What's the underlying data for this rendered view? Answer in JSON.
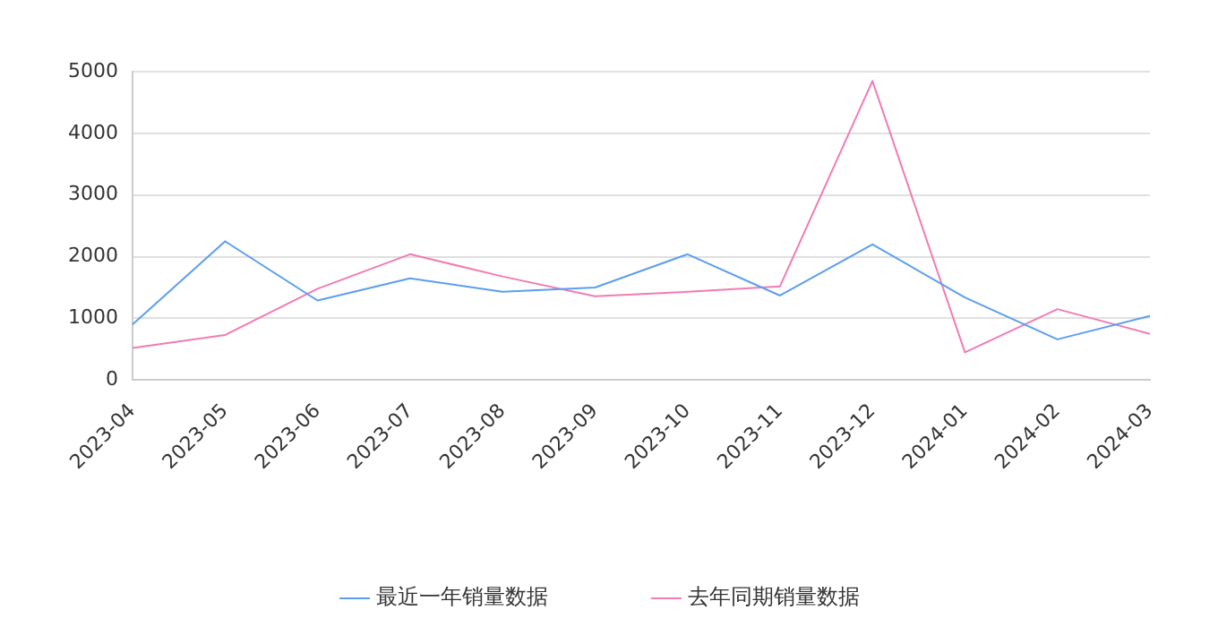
{
  "chart_data": {
    "type": "line",
    "categories": [
      "2023-04",
      "2023-05",
      "2023-06",
      "2023-07",
      "2023-08",
      "2023-09",
      "2023-10",
      "2023-11",
      "2023-12",
      "2024-01",
      "2024-02",
      "2024-03"
    ],
    "series": [
      {
        "name": "最近一年销量数据",
        "color": "#5b9ef0",
        "values": [
          900,
          2250,
          1290,
          1650,
          1430,
          1500,
          2040,
          1370,
          2200,
          1340,
          660,
          1040
        ]
      },
      {
        "name": "去年同期销量数据",
        "color": "#f27bb5",
        "values": [
          520,
          730,
          1480,
          2040,
          1680,
          1360,
          1430,
          1520,
          4850,
          450,
          1150,
          750
        ]
      }
    ],
    "ylim": [
      0,
      5000
    ],
    "yticks": [
      0,
      1000,
      2000,
      3000,
      4000,
      5000
    ],
    "grid": "y",
    "legend": "bottom",
    "marker": "none",
    "line_style": "solid"
  }
}
